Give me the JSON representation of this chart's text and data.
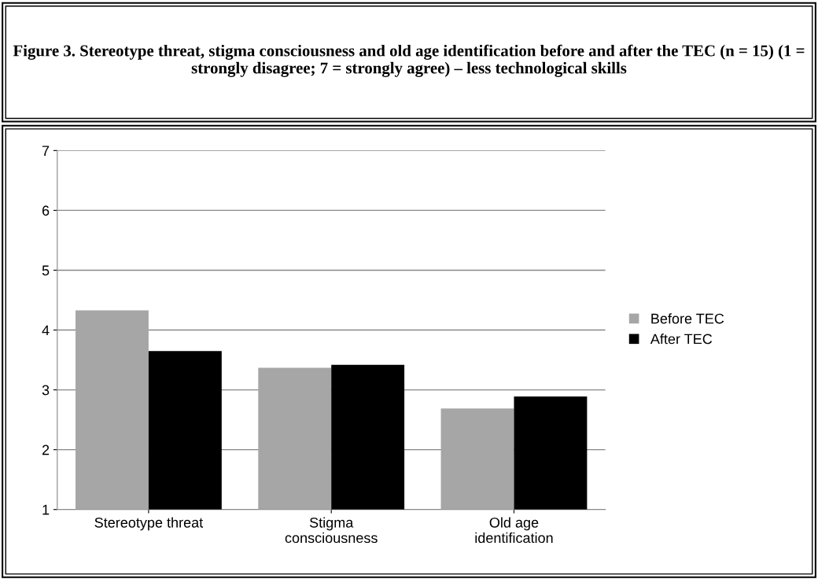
{
  "chart_data": {
    "type": "bar",
    "title": "Figure 3. Stereotype threat, stigma consciousness and old age identification before and after the TEC (n = 15) (1 = strongly disagree; 7 = strongly agree) – less technological skills",
    "categories": [
      "Stereotype threat",
      "Stigma\nconsciousness",
      "Old age\nidentification"
    ],
    "series": [
      {
        "name": "Before TEC",
        "color": "#a6a6a6",
        "values": [
          4.33,
          3.37,
          2.69
        ]
      },
      {
        "name": "After TEC",
        "color": "#000000",
        "values": [
          3.65,
          3.42,
          2.89
        ]
      }
    ],
    "ylim": [
      1,
      7
    ],
    "yticks": [
      1,
      2,
      3,
      4,
      5,
      6,
      7
    ],
    "grid": "y",
    "legend": "right"
  }
}
